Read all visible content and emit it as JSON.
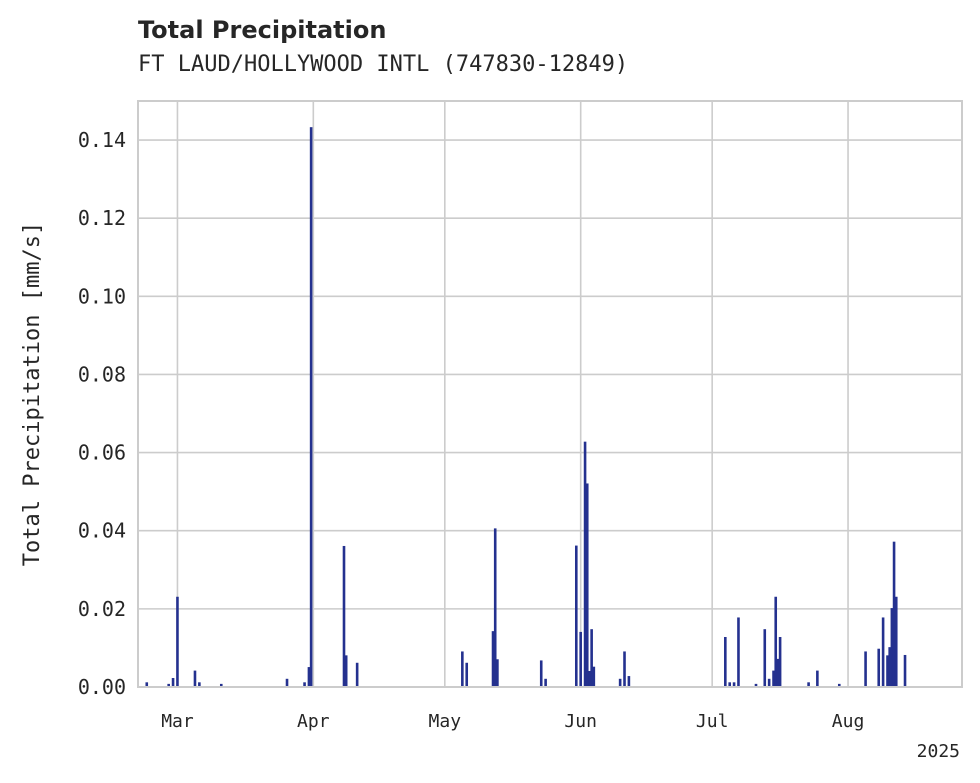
{
  "chart_data": {
    "type": "bar",
    "title": "Total Precipitation",
    "subtitle": "FT LAUD/HOLLYWOOD INTL (747830-12849)",
    "xlabel": "",
    "ylabel": "Total Precipitation [mm/s]",
    "xlim": [
      "2025-02-20",
      "2025-08-27"
    ],
    "ylim": [
      0,
      0.15
    ],
    "yticks": [
      0.0,
      0.02,
      0.04,
      0.06,
      0.08,
      0.1,
      0.12,
      0.14
    ],
    "ytick_labels": [
      "0.00",
      "0.02",
      "0.04",
      "0.06",
      "0.08",
      "0.10",
      "0.12",
      "0.14"
    ],
    "xticks": [
      "2025-03-01",
      "2025-04-01",
      "2025-05-01",
      "2025-06-01",
      "2025-07-01",
      "2025-08-01"
    ],
    "xtick_labels": [
      "Mar",
      "Apr",
      "May",
      "Jun",
      "Jul",
      "Aug"
    ],
    "year_label": "2025",
    "grid": true,
    "bar_color": "#24318f",
    "series": [
      {
        "x": [
          "2025-02-22",
          "2025-02-27",
          "2025-02-28",
          "2025-03-01",
          "2025-03-05",
          "2025-03-06",
          "2025-03-11",
          "2025-03-26",
          "2025-03-30",
          "2025-03-31",
          "2025-03-31T12",
          "2025-04-08",
          "2025-04-08T12",
          "2025-04-11",
          "2025-05-05",
          "2025-05-06",
          "2025-05-12",
          "2025-05-12T12",
          "2025-05-13",
          "2025-05-23",
          "2025-05-24",
          "2025-05-31",
          "2025-06-01",
          "2025-06-02",
          "2025-06-02T12",
          "2025-06-03",
          "2025-06-03T12",
          "2025-06-04",
          "2025-06-10",
          "2025-06-11",
          "2025-06-12",
          "2025-07-04",
          "2025-07-05",
          "2025-07-06",
          "2025-07-07",
          "2025-07-11",
          "2025-07-13",
          "2025-07-14",
          "2025-07-15",
          "2025-07-15T12",
          "2025-07-16",
          "2025-07-16T12",
          "2025-07-23",
          "2025-07-25",
          "2025-07-30",
          "2025-08-05",
          "2025-08-08",
          "2025-08-09",
          "2025-08-10",
          "2025-08-10T12",
          "2025-08-11",
          "2025-08-11T12",
          "2025-08-12",
          "2025-08-14"
        ],
        "values": [
          0.0012,
          0.0008,
          0.0023,
          0.0231,
          0.0042,
          0.0012,
          0.0008,
          0.0021,
          0.0012,
          0.0051,
          0.1433,
          0.0361,
          0.0081,
          0.0062,
          0.0091,
          0.0062,
          0.0143,
          0.0406,
          0.0071,
          0.0068,
          0.0021,
          0.0362,
          0.0141,
          0.0628,
          0.0521,
          0.0041,
          0.0148,
          0.0052,
          0.0021,
          0.0091,
          0.0028,
          0.0128,
          0.0012,
          0.0012,
          0.0178,
          0.0008,
          0.0148,
          0.0021,
          0.0042,
          0.0231,
          0.0072,
          0.0128,
          0.0012,
          0.0042,
          0.0008,
          0.0091,
          0.0098,
          0.0178,
          0.0081,
          0.0102,
          0.0202,
          0.0372,
          0.0231,
          0.0082
        ]
      }
    ]
  }
}
